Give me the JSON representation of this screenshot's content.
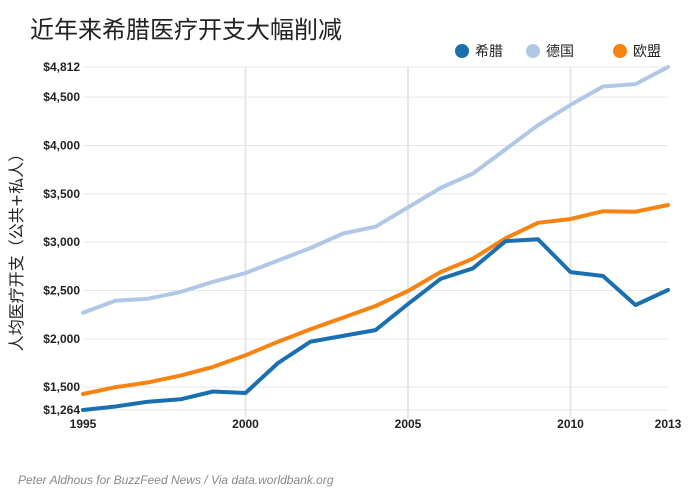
{
  "chart_data": {
    "type": "line",
    "title": "近年来希腊医疗开支大幅削减",
    "ylabel": "人均医疗开支（公共+私人）",
    "xlabel": "",
    "x": [
      1995,
      1996,
      1997,
      1998,
      1999,
      2000,
      2001,
      2002,
      2003,
      2004,
      2005,
      2006,
      2007,
      2008,
      2009,
      2010,
      2011,
      2012,
      2013
    ],
    "xlim": [
      1995,
      2013
    ],
    "ylim": [
      1264,
      4812
    ],
    "x_ticks": [
      1995,
      2000,
      2005,
      2010,
      2013
    ],
    "x_tick_labels": [
      "1995",
      "2000",
      "2005",
      "2010",
      "2013"
    ],
    "x_gridlines": [
      2000,
      2005,
      2010
    ],
    "y_ticks": [
      1264,
      1500,
      2000,
      2500,
      3000,
      3500,
      4000,
      4500,
      4812
    ],
    "y_tick_labels": [
      "$1,264",
      "$1,500",
      "$2,000",
      "$2,500",
      "$3,000",
      "$3,500",
      "$4,000",
      "$4,500",
      "$4,812"
    ],
    "legend_position": "top-right",
    "series": [
      {
        "name": "希腊",
        "color": "#1a6faf",
        "values": [
          1264,
          1300,
          1350,
          1375,
          1455,
          1440,
          1750,
          1970,
          2030,
          2090,
          2360,
          2620,
          2730,
          3010,
          3030,
          2690,
          2650,
          2350,
          2505
        ]
      },
      {
        "name": "德国",
        "color": "#b0c8e6",
        "values": [
          2270,
          2395,
          2415,
          2485,
          2590,
          2680,
          2810,
          2940,
          3090,
          3160,
          3360,
          3560,
          3710,
          3960,
          4210,
          4420,
          4610,
          4635,
          4812
        ]
      },
      {
        "name": "欧盟",
        "color": "#f78312",
        "values": [
          1430,
          1500,
          1550,
          1620,
          1710,
          1830,
          1970,
          2100,
          2220,
          2340,
          2495,
          2690,
          2830,
          3040,
          3200,
          3240,
          3320,
          3315,
          3385
        ]
      }
    ]
  },
  "source": "Peter Aldhous for BuzzFeed News / Via data.worldbank.org"
}
